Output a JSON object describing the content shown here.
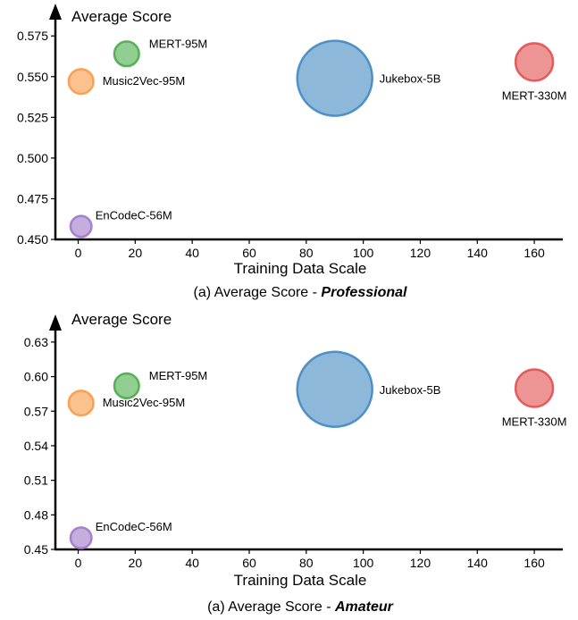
{
  "chart_data": [
    {
      "type": "scatter",
      "ylabel": "Average Score",
      "xlabel": "Training Data Scale",
      "caption_prefix": "(a) Average Score - ",
      "caption_emph": "Professional",
      "xlim": [
        -8,
        170
      ],
      "ylim": [
        0.45,
        0.585
      ],
      "xticks": [
        0,
        20,
        40,
        60,
        80,
        100,
        120,
        140,
        160
      ],
      "yticks": [
        "0.450",
        "0.475",
        "0.500",
        "0.525",
        "0.550",
        "0.575"
      ],
      "grid": false,
      "points": [
        {
          "label": "EnCodeC-56M",
          "x": 1,
          "y": 0.458,
          "size_rel": 0.28,
          "color": "#9b72c7"
        },
        {
          "label": "Music2Vec-95M",
          "x": 1,
          "y": 0.547,
          "size_rel": 0.33,
          "color": "#f89640"
        },
        {
          "label": "MERT-95M",
          "x": 17,
          "y": 0.564,
          "size_rel": 0.33,
          "color": "#43a843"
        },
        {
          "label": "Jukebox-5B",
          "x": 90,
          "y": 0.549,
          "size_rel": 1.0,
          "color": "#3b84bf"
        },
        {
          "label": "MERT-330M",
          "x": 160,
          "y": 0.559,
          "size_rel": 0.5,
          "color": "#e04848"
        }
      ]
    },
    {
      "type": "scatter",
      "ylabel": "Average Score",
      "xlabel": "Training Data Scale",
      "caption_prefix": "(a) Average Score - ",
      "caption_emph": "Amateur",
      "xlim": [
        -8,
        170
      ],
      "ylim": [
        0.45,
        0.64
      ],
      "xticks": [
        0,
        20,
        40,
        60,
        80,
        100,
        120,
        140,
        160
      ],
      "yticks": [
        "0.45",
        "0.48",
        "0.51",
        "0.54",
        "0.57",
        "0.60",
        "0.63"
      ],
      "grid": false,
      "points": [
        {
          "label": "EnCodeC-56M",
          "x": 1,
          "y": 0.46,
          "size_rel": 0.28,
          "color": "#9b72c7"
        },
        {
          "label": "Music2Vec-95M",
          "x": 1,
          "y": 0.577,
          "size_rel": 0.33,
          "color": "#f89640"
        },
        {
          "label": "MERT-95M",
          "x": 17,
          "y": 0.592,
          "size_rel": 0.33,
          "color": "#43a843"
        },
        {
          "label": "Jukebox-5B",
          "x": 90,
          "y": 0.589,
          "size_rel": 1.0,
          "color": "#3b84bf"
        },
        {
          "label": "MERT-330M",
          "x": 160,
          "y": 0.59,
          "size_rel": 0.5,
          "color": "#e04848"
        }
      ]
    }
  ]
}
